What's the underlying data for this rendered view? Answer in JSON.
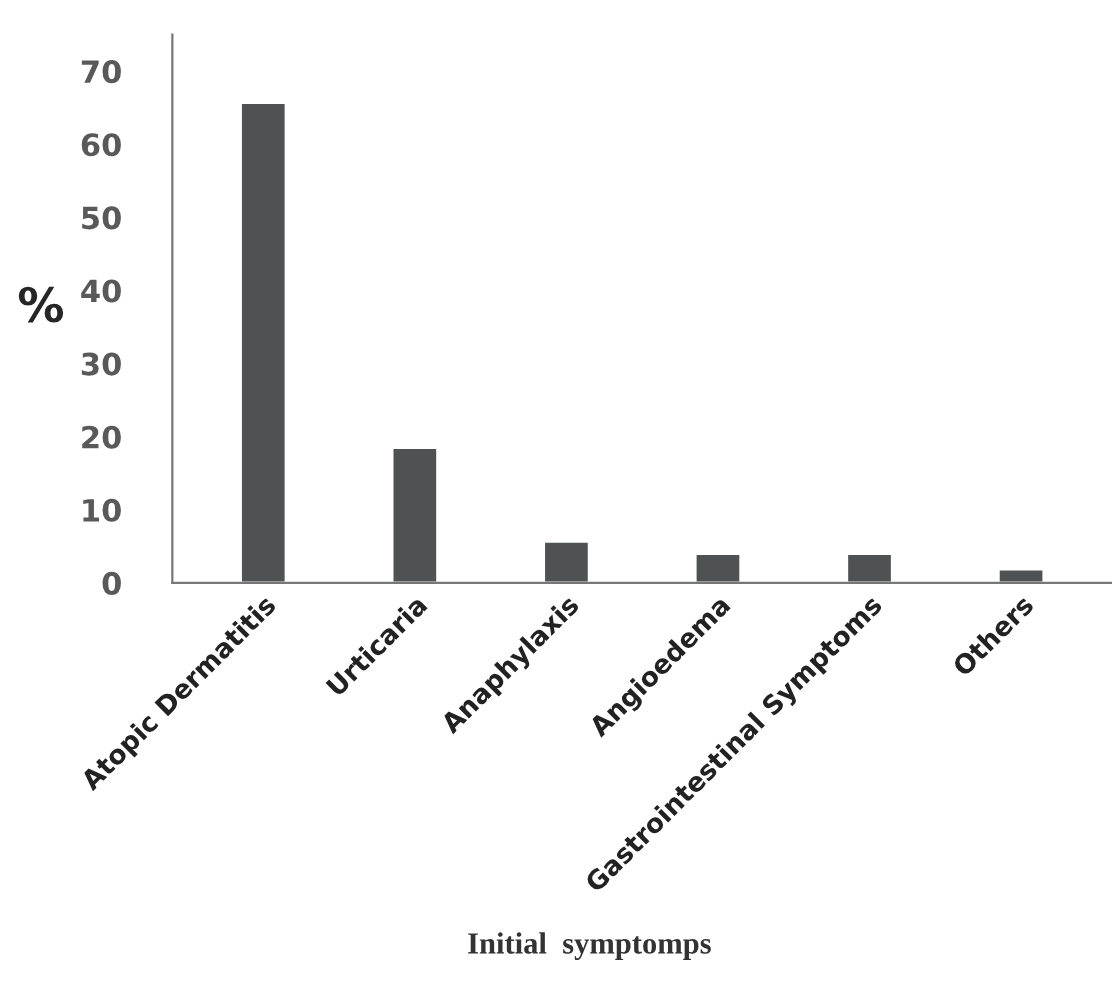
{
  "chart_data": {
    "type": "bar",
    "xlabel": "Initial  symptomps",
    "ylabel": "%",
    "categories": [
      "Atopic Dermatitis",
      "Urticaria",
      "Anaphylaxis",
      "Angioedema",
      "Gastrointestinal Symptoms",
      "Others"
    ],
    "values": [
      65.7,
      18.5,
      5.7,
      4.0,
      4.0,
      1.9
    ],
    "color": "#4f5253",
    "ylim": [
      0,
      75
    ],
    "yticks": [
      0,
      10,
      20,
      30,
      40,
      50,
      60,
      70
    ],
    "grid": false
  }
}
